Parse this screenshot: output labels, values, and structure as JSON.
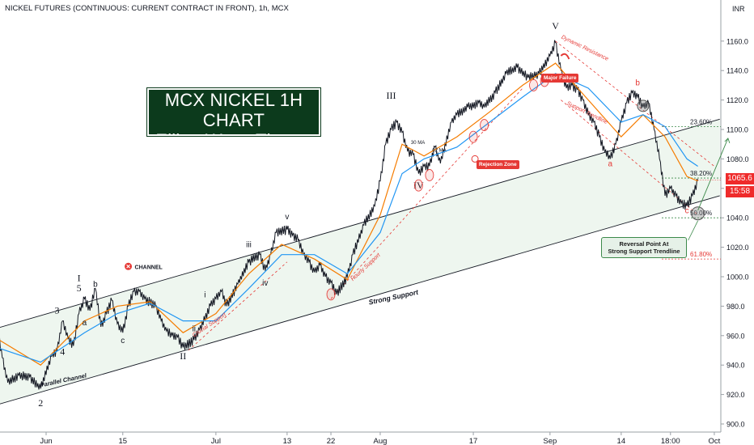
{
  "header": {
    "symbol_line": "NICKEL FUTURES (CONTINUOUS: CURRENT CONTRACT IN FRONT), 1h, MCX",
    "currency": "INR"
  },
  "title_box": {
    "line1": "MCX NICKEL 1H CHART",
    "line2": "Elliott Wave Theory"
  },
  "callouts": {
    "reversal_line1": "Reversal Point At",
    "reversal_line2": "Strong Support Trendline",
    "major_failure": "Major Failure",
    "rejection_zone": "Rejection Zone"
  },
  "price_tags": {
    "last_price": "1065.6",
    "countdown": "15:58"
  },
  "colors": {
    "up_candle": "#131722",
    "ma_fast": "#f57c00",
    "ma_slow": "#2196f3",
    "channel_fill": "#eef6ef",
    "annotation_red": "#e53935",
    "annotation_green": "#3c8a4a",
    "price_tag_red": "#ef2b2b",
    "title_box_bg": "#0c3a1c"
  },
  "chart_data": {
    "type": "line",
    "title": "NICKEL FUTURES (CONTINUOUS: CURRENT CONTRACT IN FRONT), 1h, MCX",
    "ylabel": "INR",
    "ylim": [
      900,
      1180
    ],
    "y_ticks": [
      900,
      920,
      940,
      960,
      980,
      1000,
      1020,
      1040,
      1060,
      1080,
      1100,
      1120,
      1140,
      1160
    ],
    "x_tick_labels": [
      "Jun",
      "15",
      "Jul",
      "13",
      "22",
      "Aug",
      "17",
      "Sep",
      "14",
      "18:00",
      "Oct"
    ],
    "x_ticks_day": [
      1,
      15,
      32,
      45,
      53,
      62,
      79,
      93,
      106,
      115,
      123
    ],
    "x_axis_note": "day offsets from Jun 1",
    "last_price": 1065.6,
    "series": [
      {
        "kind": "price_path",
        "points": [
          [
            -8,
            967
          ],
          [
            -7,
            945
          ],
          [
            -6,
            928
          ],
          [
            -4,
            933
          ],
          [
            -2,
            932
          ],
          [
            0,
            924
          ],
          [
            2,
            946
          ],
          [
            3,
            950
          ],
          [
            4,
            970
          ],
          [
            5,
            958
          ],
          [
            6,
            953
          ],
          [
            7,
            975
          ],
          [
            8,
            985
          ],
          [
            9,
            977
          ],
          [
            10,
            992
          ],
          [
            11,
            966
          ],
          [
            12,
            975
          ],
          [
            13,
            984
          ],
          [
            14,
            968
          ],
          [
            15,
            962
          ],
          [
            16,
            980
          ],
          [
            17,
            990
          ],
          [
            18,
            990
          ],
          [
            19,
            985
          ],
          [
            21,
            980
          ],
          [
            22,
            970
          ],
          [
            23,
            963
          ],
          [
            24,
            960
          ],
          [
            25,
            959
          ],
          [
            26,
            952
          ],
          [
            28,
            957
          ],
          [
            29,
            964
          ],
          [
            31,
            980
          ],
          [
            32,
            985
          ],
          [
            33,
            990
          ],
          [
            34,
            980
          ],
          [
            36,
            995
          ],
          [
            38,
            1010
          ],
          [
            40,
            1015
          ],
          [
            41,
            1004
          ],
          [
            42,
            1015
          ],
          [
            43,
            1030
          ],
          [
            45,
            1032
          ],
          [
            46,
            1028
          ],
          [
            47,
            1025
          ],
          [
            48,
            1015
          ],
          [
            49,
            1010
          ],
          [
            50,
            1003
          ],
          [
            51,
            1008
          ],
          [
            52,
            1000
          ],
          [
            53,
            996
          ],
          [
            54,
            988
          ],
          [
            56,
            1000
          ],
          [
            57,
            1015
          ],
          [
            59,
            1035
          ],
          [
            61,
            1048
          ],
          [
            62,
            1065
          ],
          [
            63,
            1090
          ],
          [
            64,
            1100
          ],
          [
            65,
            1105
          ],
          [
            66,
            1098
          ],
          [
            67,
            1085
          ],
          [
            68,
            1083
          ],
          [
            69,
            1070
          ],
          [
            70,
            1075
          ],
          [
            71,
            1075
          ],
          [
            72,
            1088
          ],
          [
            73,
            1077
          ],
          [
            75,
            1105
          ],
          [
            76,
            1110
          ],
          [
            78,
            1115
          ],
          [
            80,
            1118
          ],
          [
            81,
            1115
          ],
          [
            83,
            1125
          ],
          [
            85,
            1138
          ],
          [
            87,
            1142
          ],
          [
            89,
            1135
          ],
          [
            91,
            1138
          ],
          [
            93,
            1150
          ],
          [
            94,
            1159
          ],
          [
            95,
            1140
          ],
          [
            96,
            1128
          ],
          [
            97,
            1130
          ],
          [
            98,
            1127
          ],
          [
            99,
            1120
          ],
          [
            100,
            1110
          ],
          [
            101,
            1105
          ],
          [
            102,
            1095
          ],
          [
            103,
            1085
          ],
          [
            104,
            1080
          ],
          [
            105,
            1090
          ],
          [
            106,
            1105
          ],
          [
            107,
            1118
          ],
          [
            108,
            1125
          ],
          [
            109,
            1122
          ],
          [
            110,
            1115
          ],
          [
            111,
            1118
          ],
          [
            112,
            1100
          ],
          [
            113,
            1080
          ],
          [
            114,
            1055
          ],
          [
            115,
            1060
          ],
          [
            116,
            1055
          ],
          [
            117,
            1050
          ],
          [
            118,
            1048
          ],
          [
            119,
            1055
          ],
          [
            120,
            1065.6
          ]
        ]
      },
      {
        "name": "30 MA",
        "kind": "moving_average",
        "points": [
          [
            -8,
            958
          ],
          [
            0,
            940
          ],
          [
            8,
            970
          ],
          [
            14,
            980
          ],
          [
            20,
            983
          ],
          [
            26,
            962
          ],
          [
            32,
            975
          ],
          [
            38,
            1002
          ],
          [
            44,
            1022
          ],
          [
            50,
            1012
          ],
          [
            56,
            998
          ],
          [
            62,
            1042
          ],
          [
            66,
            1090
          ],
          [
            70,
            1082
          ],
          [
            76,
            1095
          ],
          [
            82,
            1112
          ],
          [
            88,
            1130
          ],
          [
            94,
            1145
          ],
          [
            100,
            1120
          ],
          [
            106,
            1095
          ],
          [
            110,
            1110
          ],
          [
            114,
            1095
          ],
          [
            118,
            1068
          ],
          [
            120,
            1065
          ]
        ]
      },
      {
        "name": "62 MA",
        "kind": "moving_average",
        "points": [
          [
            -8,
            952
          ],
          [
            0,
            942
          ],
          [
            8,
            962
          ],
          [
            14,
            975
          ],
          [
            20,
            982
          ],
          [
            26,
            970
          ],
          [
            32,
            970
          ],
          [
            38,
            992
          ],
          [
            44,
            1015
          ],
          [
            50,
            1015
          ],
          [
            56,
            1002
          ],
          [
            62,
            1030
          ],
          [
            66,
            1070
          ],
          [
            70,
            1080
          ],
          [
            76,
            1088
          ],
          [
            82,
            1105
          ],
          [
            88,
            1122
          ],
          [
            94,
            1138
          ],
          [
            100,
            1128
          ],
          [
            106,
            1105
          ],
          [
            110,
            1110
          ],
          [
            114,
            1102
          ],
          [
            118,
            1080
          ],
          [
            120,
            1075
          ]
        ]
      }
    ],
    "trendlines": [
      {
        "name": "Strong Support",
        "from": [
          -8,
          913
        ],
        "to": [
          124,
          1055
        ]
      },
      {
        "name": "Parallel Channel",
        "from": [
          -8,
          965
        ],
        "to": [
          124,
          1107
        ]
      },
      {
        "name": "Hourly Support",
        "from": [
          53,
          985
        ],
        "to": [
          88,
          1128
        ]
      },
      {
        "name": "Crucial Support",
        "from": [
          27,
          950
        ],
        "to": [
          45,
          1010
        ]
      },
      {
        "name": "Dynamic Resistance",
        "from": [
          94,
          1160
        ],
        "to": [
          123,
          1075
        ]
      },
      {
        "name": "Support Trendline",
        "from": [
          95,
          1120
        ],
        "to": [
          120,
          1042
        ]
      }
    ],
    "fib_levels": [
      {
        "label": "23.60%",
        "y": 1102
      },
      {
        "label": "38.20%",
        "y": 1067
      },
      {
        "label": "50.00%",
        "y": 1040
      },
      {
        "label": "61.80%",
        "y": 1012
      }
    ],
    "wave_labels": [
      {
        "text": "2",
        "day": 0,
        "y": 912
      },
      {
        "text": "3",
        "day": 3,
        "y": 975
      },
      {
        "text": "4",
        "day": 4,
        "y": 947
      },
      {
        "text": "5",
        "day": 7,
        "y": 990
      },
      {
        "text": "I",
        "day": 7,
        "y": 997
      },
      {
        "text": "a",
        "day": 8,
        "y": 967
      },
      {
        "text": "b",
        "day": 10,
        "y": 993
      },
      {
        "text": "c",
        "day": 15,
        "y": 955
      },
      {
        "text": "II",
        "day": 26,
        "y": 944
      },
      {
        "text": "i",
        "day": 30,
        "y": 986
      },
      {
        "text": "ii",
        "day": 28,
        "y": 963
      },
      {
        "text": "iii",
        "day": 38,
        "y": 1020
      },
      {
        "text": "iv",
        "day": 41,
        "y": 994
      },
      {
        "text": "v",
        "day": 45,
        "y": 1039
      },
      {
        "text": "III",
        "day": 64,
        "y": 1121
      },
      {
        "text": "IV",
        "day": 69,
        "y": 1060
      },
      {
        "text": "V",
        "day": 94,
        "y": 1168
      },
      {
        "text": "a",
        "day": 104,
        "y": 1075
      },
      {
        "text": "b",
        "day": 109,
        "y": 1130
      },
      {
        "text": "c",
        "day": 118,
        "y": 1043
      }
    ],
    "annotations": [
      {
        "text": "Strong Support"
      },
      {
        "text": "Parallel Channel"
      },
      {
        "text": "Hourly Support"
      },
      {
        "text": "Crucial Support"
      },
      {
        "text": "Dynamic Resistance"
      },
      {
        "text": "Support Trendline"
      },
      {
        "text": "CHANNEL"
      },
      {
        "text": "30 MA"
      },
      {
        "text": "62 MA"
      }
    ]
  }
}
